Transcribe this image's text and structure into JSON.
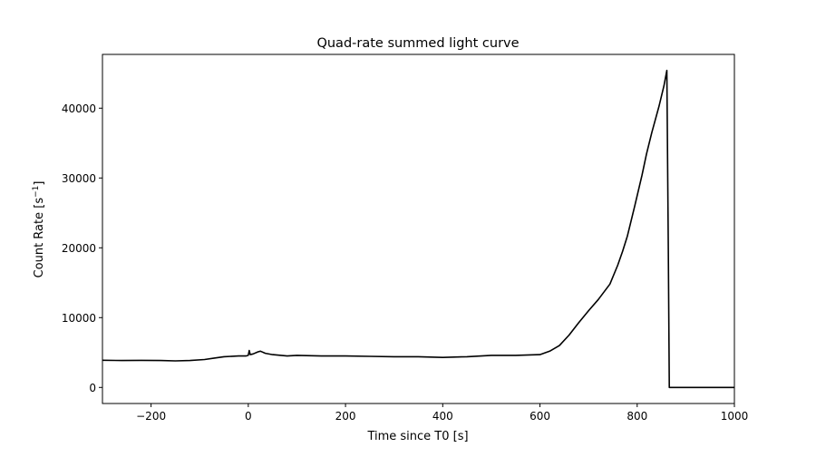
{
  "chart_data": {
    "type": "line",
    "title": "Quad-rate summed light curve",
    "xlabel": "Time since T0 [s]",
    "ylabel_main": "Count Rate [s",
    "ylabel_sup": "−1",
    "ylabel_end": "]",
    "xlim": [
      -300,
      1000
    ],
    "ylim": [
      -2300,
      47700
    ],
    "xticks": [
      -200,
      0,
      200,
      400,
      600,
      800,
      1000
    ],
    "xtick_labels": [
      "−200",
      "0",
      "200",
      "400",
      "600",
      "800",
      "1000"
    ],
    "yticks": [
      0,
      10000,
      20000,
      30000,
      40000
    ],
    "ytick_labels": [
      "0",
      "10000",
      "20000",
      "30000",
      "40000"
    ],
    "grid": false,
    "line_color": "#000000",
    "series": [
      {
        "name": "Quad-rate summed",
        "x": [
          -300,
          -260,
          -220,
          -180,
          -150,
          -120,
          -90,
          -70,
          -50,
          -20,
          -5,
          0,
          2,
          4,
          10,
          20,
          25,
          35,
          50,
          80,
          100,
          150,
          200,
          250,
          300,
          350,
          400,
          450,
          500,
          550,
          600,
          620,
          640,
          660,
          680,
          700,
          720,
          744,
          760,
          770,
          780,
          795,
          810,
          819,
          830,
          845,
          855,
          861,
          864,
          866,
          1000
        ],
        "y": [
          3900,
          3850,
          3880,
          3850,
          3800,
          3850,
          4000,
          4200,
          4400,
          4500,
          4500,
          4600,
          5300,
          4700,
          4800,
          5100,
          5200,
          4900,
          4700,
          4500,
          4600,
          4500,
          4500,
          4450,
          4400,
          4400,
          4300,
          4400,
          4600,
          4600,
          4700,
          5200,
          6000,
          7500,
          9300,
          11000,
          12600,
          14800,
          17500,
          19500,
          21700,
          26000,
          30400,
          33400,
          36500,
          40300,
          43200,
          45400,
          20000,
          0,
          0
        ]
      }
    ]
  }
}
